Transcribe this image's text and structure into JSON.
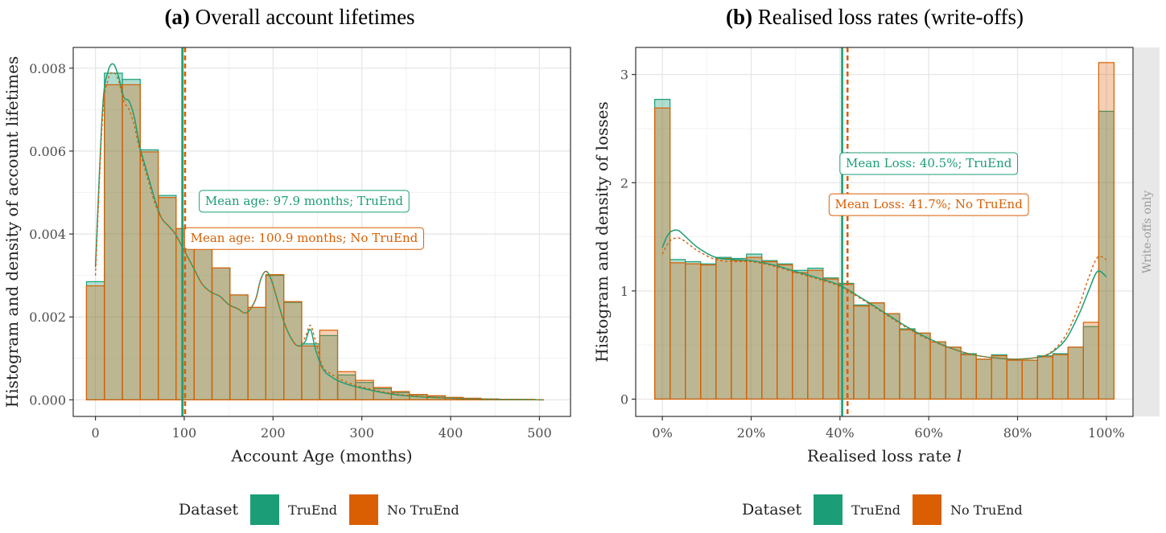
{
  "legend": {
    "title": "Dataset",
    "truend_label": "TruEnd",
    "notruend_label": "No TruEnd"
  },
  "colors": {
    "truend": "#1b9e77",
    "notruend": "#d95f02",
    "grid": "#e6e6e6",
    "strip": "#e8e8e8"
  },
  "chart_data": [
    {
      "type": "bar",
      "title_prefix": "(a)",
      "title_text": "Overall account lifetimes",
      "xlabel": "Account Age (months)",
      "ylabel": "Histogram and density of account lifetimes",
      "xlim": [
        -25,
        535
      ],
      "ylim": [
        -0.0004,
        0.0085
      ],
      "x_ticks": [
        0,
        100,
        200,
        300,
        400,
        500
      ],
      "x_tick_labels": [
        "0",
        "100",
        "200",
        "300",
        "400",
        "500"
      ],
      "y_ticks": [
        0,
        0.002,
        0.004,
        0.006,
        0.008
      ],
      "y_tick_labels": [
        "0.000",
        "0.002",
        "0.004",
        "0.006",
        "0.008"
      ],
      "bin_width": 20.2,
      "bin_centers": [
        0,
        20.2,
        40.4,
        60.6,
        80.8,
        101,
        121.2,
        141.4,
        161.6,
        181.8,
        202,
        222.2,
        242.4,
        262.6,
        282.8,
        303,
        323.2,
        343.4,
        363.6,
        383.8,
        404,
        424.2,
        444.4,
        464.6,
        484.8,
        505
      ],
      "series": [
        {
          "name": "TruEnd",
          "values": [
            0.00285,
            0.00788,
            0.00773,
            0.00603,
            0.00493,
            0.00413,
            0.00368,
            0.00318,
            0.00253,
            0.00223,
            0.003,
            0.00235,
            0.00135,
            0.00155,
            0.0006,
            0.00042,
            0.00027,
            0.00018,
            0.00012,
            9e-05,
            5e-05,
            3e-05,
            2e-05,
            1e-05,
            1e-05,
            0.0
          ]
        },
        {
          "name": "No TruEnd",
          "values": [
            0.00275,
            0.0076,
            0.0076,
            0.00598,
            0.00488,
            0.00413,
            0.00368,
            0.00318,
            0.00253,
            0.00223,
            0.00302,
            0.00237,
            0.0013,
            0.00168,
            0.00068,
            0.00047,
            0.0003,
            0.0002,
            0.00013,
            0.0001,
            6e-05,
            4e-05,
            2e-05,
            1e-05,
            1e-05,
            0.0
          ]
        }
      ],
      "density": [
        {
          "name": "TruEnd",
          "x": [
            0,
            8,
            14,
            20,
            26,
            32,
            38,
            44,
            50,
            58,
            66,
            74,
            82,
            90,
            100,
            110,
            120,
            130,
            140,
            150,
            160,
            170,
            180,
            186,
            192,
            198,
            205,
            212,
            220,
            228,
            236,
            242,
            248,
            256,
            266,
            280,
            300,
            330,
            360,
            400,
            440,
            480,
            505
          ],
          "y": [
            0.0032,
            0.007,
            0.0079,
            0.0081,
            0.0078,
            0.0073,
            0.0072,
            0.0068,
            0.0061,
            0.0055,
            0.0049,
            0.0044,
            0.0042,
            0.004,
            0.0036,
            0.0032,
            0.0028,
            0.0026,
            0.0025,
            0.0023,
            0.0022,
            0.0021,
            0.0024,
            0.0029,
            0.0031,
            0.0029,
            0.0024,
            0.0019,
            0.0015,
            0.0013,
            0.0014,
            0.0017,
            0.0012,
            0.00075,
            0.00055,
            0.0004,
            0.00028,
            0.00015,
            8e-05,
            4e-05,
            1.5e-05,
            5e-06,
            0.0
          ]
        },
        {
          "name": "No TruEnd",
          "x": [
            0,
            8,
            14,
            20,
            26,
            32,
            38,
            44,
            50,
            58,
            66,
            74,
            82,
            90,
            100,
            110,
            120,
            130,
            140,
            150,
            160,
            170,
            180,
            186,
            192,
            198,
            205,
            212,
            220,
            228,
            236,
            242,
            248,
            256,
            266,
            280,
            300,
            330,
            360,
            400,
            440,
            480,
            505
          ],
          "y": [
            0.003,
            0.0068,
            0.0077,
            0.0079,
            0.0077,
            0.0072,
            0.007,
            0.0066,
            0.006,
            0.0054,
            0.0048,
            0.0044,
            0.0042,
            0.004,
            0.0036,
            0.0032,
            0.0028,
            0.0026,
            0.0025,
            0.0023,
            0.0022,
            0.0021,
            0.0024,
            0.0029,
            0.0031,
            0.0029,
            0.0024,
            0.0019,
            0.0015,
            0.0013,
            0.0015,
            0.0018,
            0.0014,
            0.0008,
            0.00062,
            0.00045,
            0.00031,
            0.00017,
            9e-05,
            4e-05,
            1.6e-05,
            5e-06,
            0.0
          ]
        }
      ],
      "means": [
        {
          "name": "TruEnd",
          "value": 97.9,
          "label": "Mean age: 97.9 months; TruEnd",
          "label_x": 235,
          "label_y": 0.0048
        },
        {
          "name": "No TruEnd",
          "value": 100.9,
          "label": "Mean age: 100.9 months; No TruEnd",
          "label_x": 235,
          "label_y": 0.0039
        }
      ]
    },
    {
      "type": "bar",
      "title_prefix": "(b)",
      "title_text": "Realised loss rates (write-offs)",
      "xlabel": "Realised loss rate",
      "xlabel_var": "l",
      "ylabel": "Histogram and density of losses",
      "facet_strip": "Write-offs only",
      "xlim": [
        -0.06,
        1.06
      ],
      "ylim": [
        -0.16,
        3.25
      ],
      "x_ticks": [
        0,
        0.2,
        0.4,
        0.6,
        0.8,
        1.0
      ],
      "x_tick_labels": [
        "0%",
        "20%",
        "40%",
        "60%",
        "80%",
        "100%"
      ],
      "y_ticks": [
        0,
        1,
        2,
        3
      ],
      "y_tick_labels": [
        "0",
        "1",
        "2",
        "3"
      ],
      "bin_width": 0.0345,
      "bin_centers": [
        0,
        0.0345,
        0.069,
        0.1034,
        0.1379,
        0.1724,
        0.2069,
        0.2414,
        0.2759,
        0.3103,
        0.3448,
        0.3793,
        0.4138,
        0.4483,
        0.4828,
        0.5172,
        0.5517,
        0.5862,
        0.6207,
        0.6552,
        0.6897,
        0.7241,
        0.7586,
        0.7931,
        0.8276,
        0.8621,
        0.8966,
        0.931,
        0.9655,
        1.0
      ],
      "series": [
        {
          "name": "TruEnd",
          "values": [
            2.77,
            1.29,
            1.27,
            1.25,
            1.31,
            1.3,
            1.34,
            1.28,
            1.25,
            1.19,
            1.21,
            1.12,
            1.07,
            0.87,
            0.89,
            0.79,
            0.65,
            0.61,
            0.53,
            0.48,
            0.42,
            0.37,
            0.41,
            0.36,
            0.36,
            0.4,
            0.42,
            0.48,
            0.67,
            2.66
          ]
        },
        {
          "name": "No TruEnd",
          "values": [
            2.69,
            1.26,
            1.25,
            1.24,
            1.3,
            1.28,
            1.31,
            1.27,
            1.24,
            1.17,
            1.19,
            1.11,
            1.06,
            0.86,
            0.89,
            0.79,
            0.64,
            0.61,
            0.53,
            0.48,
            0.41,
            0.37,
            0.4,
            0.36,
            0.36,
            0.39,
            0.41,
            0.48,
            0.71,
            3.11
          ]
        }
      ],
      "density": [
        {
          "name": "TruEnd",
          "x": [
            0,
            0.01,
            0.02,
            0.035,
            0.05,
            0.08,
            0.12,
            0.16,
            0.2,
            0.25,
            0.3,
            0.35,
            0.4,
            0.45,
            0.5,
            0.55,
            0.6,
            0.65,
            0.7,
            0.75,
            0.8,
            0.85,
            0.88,
            0.91,
            0.94,
            0.96,
            0.98,
            1.0
          ],
          "y": [
            1.4,
            1.5,
            1.55,
            1.56,
            1.51,
            1.4,
            1.31,
            1.29,
            1.28,
            1.24,
            1.18,
            1.12,
            1.05,
            0.93,
            0.8,
            0.67,
            0.56,
            0.47,
            0.41,
            0.38,
            0.37,
            0.39,
            0.44,
            0.56,
            0.8,
            1.0,
            1.18,
            1.13
          ]
        },
        {
          "name": "No TruEnd",
          "x": [
            0,
            0.01,
            0.02,
            0.035,
            0.05,
            0.08,
            0.12,
            0.16,
            0.2,
            0.25,
            0.3,
            0.35,
            0.4,
            0.45,
            0.5,
            0.55,
            0.6,
            0.65,
            0.7,
            0.75,
            0.8,
            0.85,
            0.88,
            0.91,
            0.94,
            0.96,
            0.98,
            1.0
          ],
          "y": [
            1.34,
            1.42,
            1.47,
            1.49,
            1.46,
            1.37,
            1.29,
            1.27,
            1.27,
            1.23,
            1.17,
            1.11,
            1.04,
            0.92,
            0.79,
            0.66,
            0.55,
            0.47,
            0.41,
            0.38,
            0.37,
            0.39,
            0.45,
            0.6,
            0.88,
            1.12,
            1.31,
            1.29
          ]
        }
      ],
      "means": [
        {
          "name": "TruEnd",
          "value": 0.405,
          "label": "Mean Loss: 40.5%; TruEnd",
          "label_x": 0.6,
          "label_y": 2.18
        },
        {
          "name": "No TruEnd",
          "value": 0.417,
          "label": "Mean Loss: 41.7%; No TruEnd",
          "label_x": 0.6,
          "label_y": 1.8
        }
      ]
    }
  ]
}
